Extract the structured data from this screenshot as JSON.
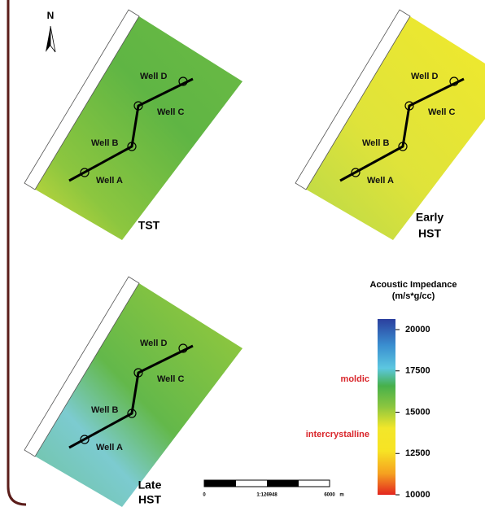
{
  "north": "N",
  "panels": [
    {
      "label_lines": [
        "TST"
      ],
      "wells": [
        "Well A",
        "Well B",
        "Well C",
        "Well D"
      ]
    },
    {
      "label_lines": [
        "Early",
        "HST"
      ],
      "wells": [
        "Well A",
        "Well B",
        "Well C",
        "Well D"
      ]
    },
    {
      "label_lines": [
        "Late",
        "HST"
      ],
      "wells": [
        "Well A",
        "Well B",
        "Well C",
        "Well D"
      ]
    }
  ],
  "colorbar": {
    "title_lines": [
      "Acoustic Impedance",
      "(m/s*g/cc)"
    ],
    "ticks": [
      20000,
      17500,
      15000,
      12500,
      10000
    ]
  },
  "annotations": [
    "moldic",
    "intercrystalline"
  ],
  "scale_bar": {
    "start": "0",
    "ratio": "1:126948",
    "end": "6000",
    "unit": "m"
  }
}
